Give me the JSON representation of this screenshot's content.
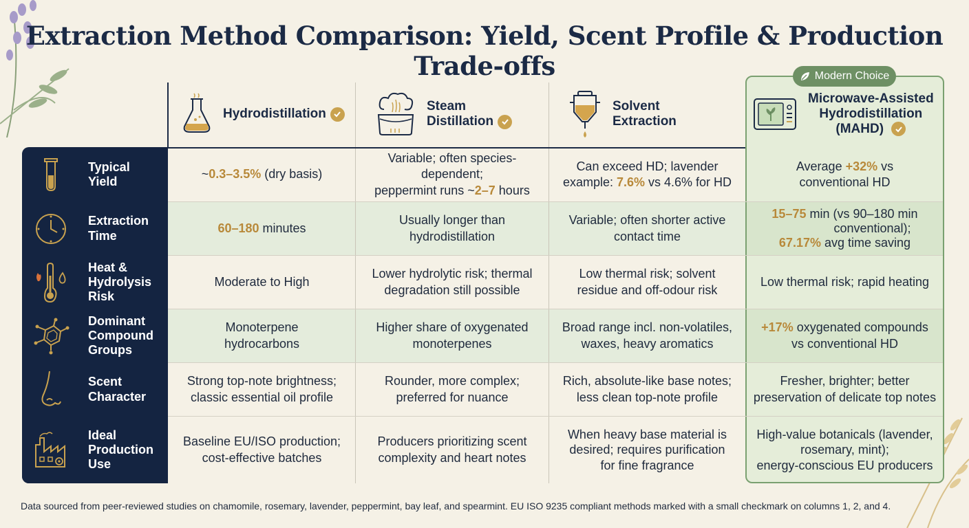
{
  "title": "Extraction Method Comparison: Yield, Scent Profile & Production Trade-offs",
  "badge": "Modern Choice",
  "columns": [
    {
      "name": "Hydrodistillation",
      "icon": "flask-icon",
      "checked": true
    },
    {
      "name": "Steam Distillation",
      "line1": "Steam",
      "line2": "Distillation",
      "icon": "steam-pot-icon",
      "checked": true
    },
    {
      "name": "Solvent Extraction",
      "line1": "Solvent",
      "line2": "Extraction",
      "icon": "funnel-icon",
      "checked": false
    },
    {
      "name": "Microwave-Assisted Hydrodistillation (MAHD)",
      "line1": "Microwave-Assisted",
      "line2": "Hydrodistillation",
      "line3": "(MAHD)",
      "icon": "microwave-icon",
      "checked": true
    }
  ],
  "rows": [
    {
      "label1": "Typical",
      "label2": "Yield",
      "label3": "",
      "icon": "test-tube-icon",
      "cells": [
        {
          "pre": "~",
          "hl": "0.3–3.5%",
          "post": " (dry basis)"
        },
        {
          "l1": "Variable; often species-dependent;",
          "l2a": "peppermint runs ~",
          "l2hl": "2–7",
          "l2b": " hours"
        },
        {
          "l1": "Can exceed HD; lavender",
          "l2a": "example: ",
          "l2hl": "7.6%",
          "l2b": " vs 4.6% for HD"
        },
        {
          "l1a": "Average ",
          "l1hl": "+32%",
          "l1b": " vs",
          "l2": "conventional HD"
        }
      ]
    },
    {
      "label1": "Extraction",
      "label2": "Time",
      "label3": "",
      "icon": "clock-icon",
      "cells": [
        {
          "hl": "60–180",
          "post": " minutes"
        },
        {
          "l1": "Usually longer than",
          "l2": "hydrodistillation"
        },
        {
          "l1": "Variable; often shorter active",
          "l2": "contact time"
        },
        {
          "l1hl": "15–75",
          "l1b": " min (vs 90–180 min",
          "l2": "conventional);",
          "l3hl": "67.17%",
          "l3b": " avg time saving"
        }
      ]
    },
    {
      "label1": "Heat &",
      "label2": "Hydrolysis",
      "label3": "Risk",
      "icon": "thermometer-icon",
      "cells": [
        {
          "l1": "Moderate to High"
        },
        {
          "l1": "Lower hydrolytic risk; thermal",
          "l2": "degradation still possible"
        },
        {
          "l1": "Low thermal risk; solvent",
          "l2": "residue and off-odour risk"
        },
        {
          "l1": "Low thermal risk; rapid heating"
        }
      ]
    },
    {
      "label1": "Dominant",
      "label2": "Compound",
      "label3": "Groups",
      "icon": "molecule-icon",
      "cells": [
        {
          "l1": "Monoterpene",
          "l2": "hydrocarbons"
        },
        {
          "l1": "Higher share of oxygenated",
          "l2": "monoterpenes"
        },
        {
          "l1": "Broad range incl. non-volatiles,",
          "l2": "waxes, heavy aromatics"
        },
        {
          "l1hl": "+17%",
          "l1b": " oxygenated compounds",
          "l2": "vs conventional HD"
        }
      ]
    },
    {
      "label1": "Scent",
      "label2": "Character",
      "label3": "",
      "icon": "nose-icon",
      "cells": [
        {
          "l1": "Strong top-note brightness;",
          "l2": "classic essential oil profile"
        },
        {
          "l1": "Rounder, more complex;",
          "l2": "preferred for nuance"
        },
        {
          "l1": "Rich, absolute-like base notes;",
          "l2": "less clean top-note profile"
        },
        {
          "l1": "Fresher, brighter; better",
          "l2": "preservation of delicate top notes"
        }
      ]
    },
    {
      "label1": "Ideal",
      "label2": "Production",
      "label3": "Use",
      "icon": "factory-icon",
      "cells": [
        {
          "l1": "Baseline EU/ISO production;",
          "l2": "cost-effective batches"
        },
        {
          "l1": "Producers prioritizing scent",
          "l2": "complexity and heart notes"
        },
        {
          "l1": "When heavy base material is",
          "l2": "desired; requires purification",
          "l3": "for fine fragrance"
        },
        {
          "l1": "High-value botanicals (lavender,",
          "l2": "rosemary, mint);",
          "l3": "energy-conscious EU producers"
        }
      ]
    }
  ],
  "footer": "Data sourced from peer-reviewed studies on chamomile, rosemary, lavender, peppermint, bay leaf, and spearmint. EU ISO 9235 compliant methods marked with a small checkmark on columns 1, 2, and 4.",
  "colors": {
    "navy": "#142441",
    "gold": "#b8893a",
    "green": "#6e9064",
    "tint": "#e4ecdc"
  }
}
